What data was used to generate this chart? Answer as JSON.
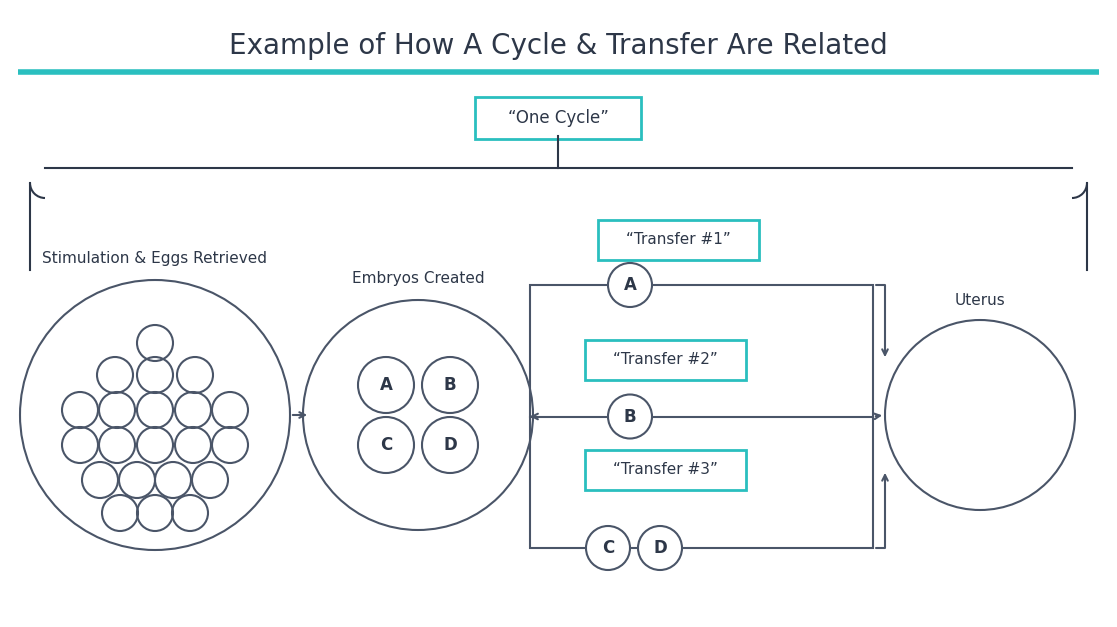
{
  "title": "Example of How A Cycle & Transfer Are Related",
  "title_fontsize": 20,
  "title_color": "#2d3748",
  "teal_color": "#2abfbf",
  "dark_color": "#2d3748",
  "edge_color": "#4a5568",
  "background": "#ffffff",
  "labels": {
    "stimulation": "Stimulation & Eggs Retrieved",
    "embryos": "Embryos Created",
    "uterus": "Uterus",
    "one_cycle": "“One Cycle”",
    "transfer1": "“Transfer #1”",
    "transfer2": "“Transfer #2”",
    "transfer3": "“Transfer #3”"
  },
  "embryo_labels": [
    "A",
    "B",
    "C",
    "D"
  ],
  "figsize": [
    11.17,
    6.27
  ],
  "dpi": 100
}
